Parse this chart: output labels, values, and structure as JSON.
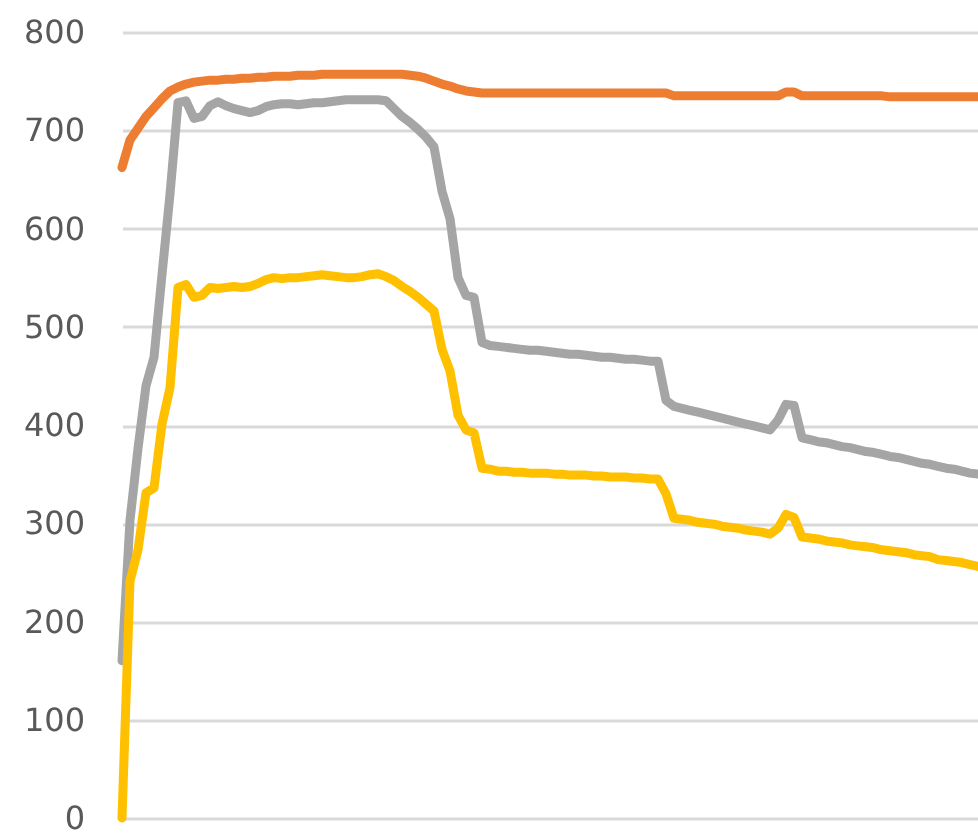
{
  "chart_data": {
    "type": "line",
    "categories": [
      null,
      null,
      null,
      null,
      null,
      null,
      null,
      null,
      null,
      null,
      null,
      null,
      null,
      null,
      null,
      null,
      null,
      null,
      null,
      null,
      null,
      null,
      null,
      null,
      null,
      null,
      null,
      null,
      null,
      null,
      null,
      null,
      null,
      null,
      null,
      null,
      null,
      null,
      null,
      null,
      null,
      null,
      null,
      null,
      null,
      null,
      null,
      null,
      null,
      null,
      null,
      null,
      null,
      null,
      null,
      null,
      null,
      null,
      null,
      null,
      null,
      null,
      null,
      null,
      null,
      null,
      null,
      null,
      null,
      null,
      null,
      null,
      null,
      null,
      null,
      null,
      null,
      null,
      null,
      null,
      null,
      null,
      null,
      null,
      null,
      null,
      null,
      null,
      null,
      null,
      null,
      null,
      null,
      null,
      null,
      null,
      null,
      null,
      null,
      null,
      null,
      null,
      null,
      null,
      null,
      null,
      null,
      null
    ],
    "series": [
      {
        "color": "#ed7d31",
        "values": [
          662,
          690,
          702,
          714,
          723,
          732,
          740,
          744,
          747,
          749,
          750,
          751,
          751,
          752,
          752,
          753,
          753,
          754,
          754,
          755,
          755,
          755,
          756,
          756,
          756,
          757,
          757,
          757,
          757,
          757,
          757,
          757,
          757,
          757,
          757,
          757,
          756,
          755,
          753,
          750,
          747,
          745,
          742,
          740,
          739,
          738,
          738,
          738,
          738,
          738,
          738,
          738,
          738,
          738,
          738,
          738,
          738,
          738,
          738,
          738,
          738,
          738,
          738,
          738,
          738,
          738,
          738,
          738,
          738,
          735,
          735,
          735,
          735,
          735,
          735,
          735,
          735,
          735,
          735,
          735,
          735,
          735,
          735,
          739,
          739,
          735,
          735,
          735,
          735,
          735,
          735,
          735,
          735,
          735,
          735,
          735,
          734,
          734,
          734,
          734,
          734,
          734,
          734,
          734,
          734,
          734,
          734,
          734
        ]
      },
      {
        "color": "#a5a5a5",
        "values": [
          160,
          303,
          376,
          440,
          469,
          553,
          635,
          728,
          730,
          712,
          714,
          725,
          729,
          725,
          722,
          720,
          718,
          720,
          724,
          726,
          727,
          727,
          726,
          727,
          728,
          728,
          729,
          730,
          731,
          731,
          731,
          731,
          731,
          730,
          722,
          714,
          708,
          701,
          693,
          683,
          638,
          610,
          550,
          532,
          530,
          484,
          481,
          480,
          479,
          478,
          477,
          476,
          476,
          475,
          474,
          473,
          472,
          472,
          471,
          470,
          469,
          469,
          468,
          467,
          467,
          466,
          465,
          465,
          425,
          419,
          417,
          415,
          413,
          411,
          409,
          407,
          405,
          403,
          401,
          399,
          397,
          395,
          405,
          421,
          420,
          387,
          385,
          383,
          382,
          380,
          378,
          377,
          375,
          373,
          372,
          370,
          368,
          367,
          365,
          363,
          361,
          360,
          358,
          356,
          355,
          353,
          351,
          350
        ]
      },
      {
        "color": "#ffc000",
        "values": [
          0,
          241,
          273,
          331,
          336,
          401,
          438,
          540,
          543,
          530,
          532,
          540,
          539,
          540,
          541,
          540,
          541,
          544,
          548,
          550,
          549,
          550,
          550,
          551,
          552,
          553,
          552,
          551,
          550,
          550,
          551,
          553,
          554,
          551,
          547,
          541,
          536,
          530,
          523,
          516,
          477,
          455,
          410,
          395,
          392,
          356,
          355,
          353,
          353,
          352,
          352,
          351,
          351,
          351,
          350,
          350,
          349,
          349,
          349,
          348,
          348,
          347,
          347,
          347,
          346,
          346,
          345,
          345,
          330,
          305,
          304,
          303,
          301,
          300,
          299,
          297,
          296,
          295,
          293,
          292,
          291,
          289,
          295,
          309,
          306,
          286,
          285,
          284,
          282,
          281,
          280,
          278,
          277,
          276,
          275,
          273,
          272,
          271,
          270,
          268,
          267,
          266,
          263,
          262,
          261,
          260,
          258,
          256
        ]
      }
    ],
    "ylim": [
      0,
      800
    ],
    "yticks": [
      0,
      100,
      200,
      300,
      400,
      500,
      600,
      700,
      800
    ],
    "grid": "y",
    "legend": false,
    "tick_labels": "y"
  }
}
